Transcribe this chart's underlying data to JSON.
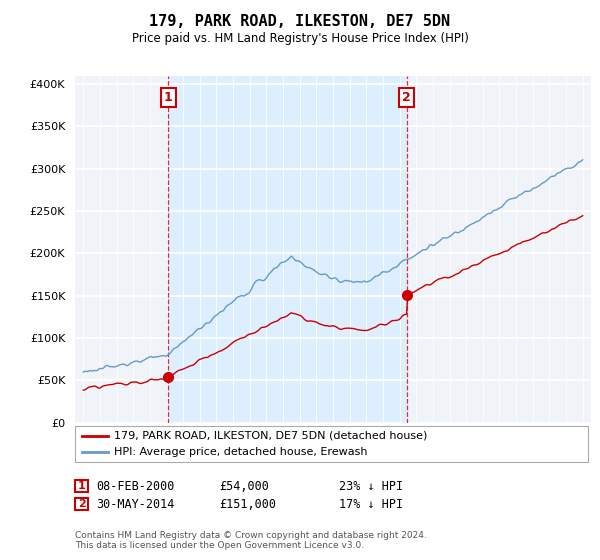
{
  "title": "179, PARK ROAD, ILKESTON, DE7 5DN",
  "subtitle": "Price paid vs. HM Land Registry's House Price Index (HPI)",
  "legend_line1": "179, PARK ROAD, ILKESTON, DE7 5DN (detached house)",
  "legend_line2": "HPI: Average price, detached house, Erewash",
  "marker1_date": "08-FEB-2000",
  "marker1_price": "£54,000",
  "marker1_hpi": "23% ↓ HPI",
  "marker2_date": "30-MAY-2014",
  "marker2_price": "£151,000",
  "marker2_hpi": "17% ↓ HPI",
  "footer": "Contains HM Land Registry data © Crown copyright and database right 2024.\nThis data is licensed under the Open Government Licence v3.0.",
  "price_color": "#cc0000",
  "hpi_color": "#6699cc",
  "shade_color": "#ddeeff",
  "marker_color": "#cc0000",
  "yticks": [
    0,
    50000,
    100000,
    150000,
    200000,
    250000,
    300000,
    350000,
    400000
  ],
  "background_color": "#ffffff",
  "plot_bg_color": "#f0f4f8",
  "t_marker1": 2000.1,
  "t_marker2": 2014.42,
  "price1": 54000,
  "price2": 151000
}
